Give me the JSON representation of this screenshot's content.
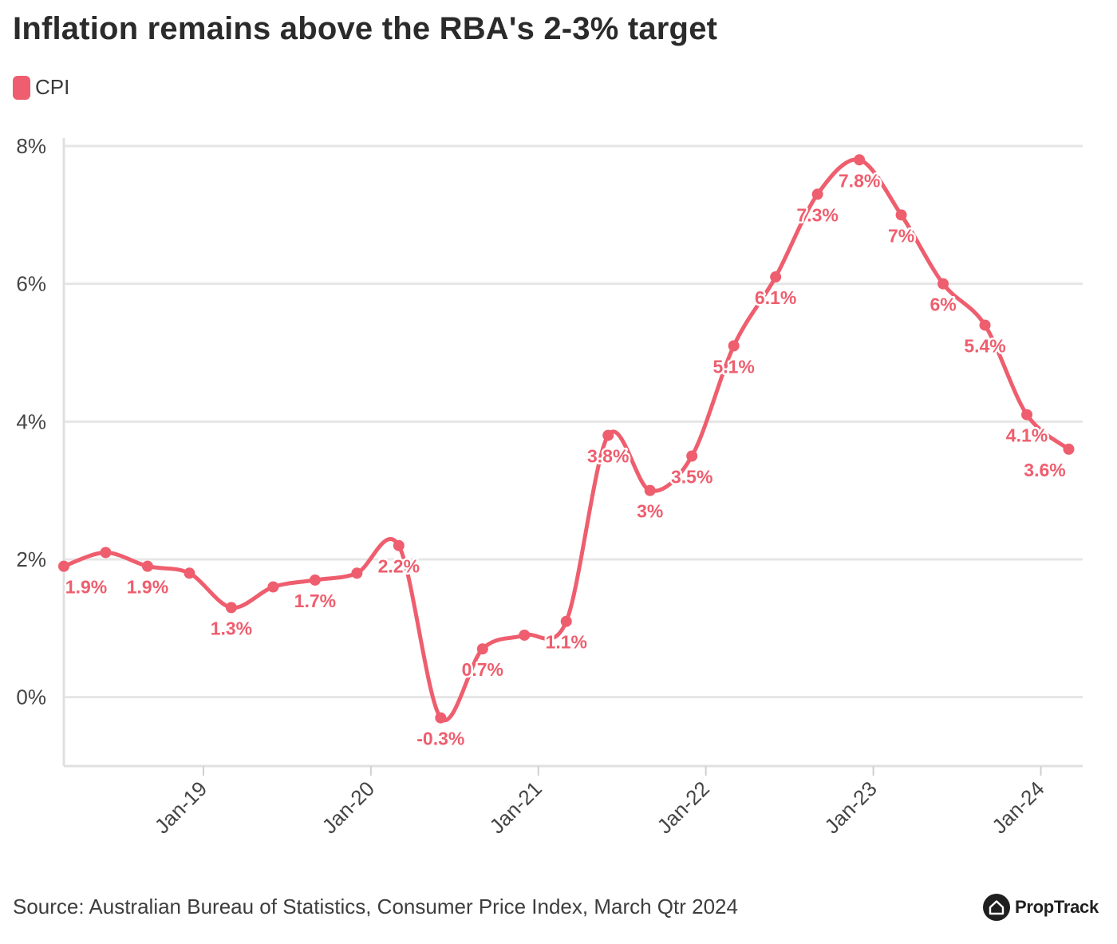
{
  "title": "Inflation remains above the RBA's 2-3% target",
  "legend": {
    "label": "CPI",
    "color": "#ee5e6e"
  },
  "source": "Source: Australian Bureau of Statistics, Consumer Price Index, March Qtr 2024",
  "brand": {
    "name": "PropTrack",
    "icon": "house-icon"
  },
  "chart_data": {
    "type": "line",
    "series": [
      {
        "name": "CPI",
        "color": "#ee5e6e",
        "x": [
          "2018-03",
          "2018-06",
          "2018-09",
          "2018-12",
          "2019-03",
          "2019-06",
          "2019-09",
          "2019-12",
          "2020-03",
          "2020-06",
          "2020-09",
          "2020-12",
          "2021-03",
          "2021-06",
          "2021-09",
          "2021-12",
          "2022-03",
          "2022-06",
          "2022-09",
          "2022-12",
          "2023-03",
          "2023-06",
          "2023-09",
          "2023-12",
          "2024-03"
        ],
        "values": [
          1.9,
          2.1,
          1.9,
          1.8,
          1.3,
          1.6,
          1.7,
          1.8,
          2.2,
          -0.3,
          0.7,
          0.9,
          1.1,
          3.8,
          3.0,
          3.5,
          5.1,
          6.1,
          7.3,
          7.8,
          7.0,
          6.0,
          5.4,
          4.1,
          3.6
        ],
        "data_labels": [
          "1.9%",
          "",
          "1.9%",
          "",
          "1.3%",
          "",
          "1.7%",
          "",
          "2.2%",
          "-0.3%",
          "0.7%",
          "",
          "1.1%",
          "3.8%",
          "3%",
          "3.5%",
          "5.1%",
          "6.1%",
          "7.3%",
          "7.8%",
          "7%",
          "6%",
          "5.4%",
          "4.1%",
          "3.6%"
        ]
      }
    ],
    "x_ticks": [
      "2019-01",
      "2020-01",
      "2021-01",
      "2022-01",
      "2023-01",
      "2024-01"
    ],
    "x_tick_labels": [
      "Jan-19",
      "Jan-20",
      "Jan-21",
      "Jan-22",
      "Jan-23",
      "Jan-24"
    ],
    "xlim": [
      "2018-03",
      "2024-04"
    ],
    "y_ticks": [
      0,
      2,
      4,
      6,
      8
    ],
    "y_tick_labels": [
      "0%",
      "2%",
      "4%",
      "6%",
      "8%"
    ],
    "ylim": [
      -1,
      8
    ],
    "grid": true,
    "legend_position": "top-left"
  }
}
